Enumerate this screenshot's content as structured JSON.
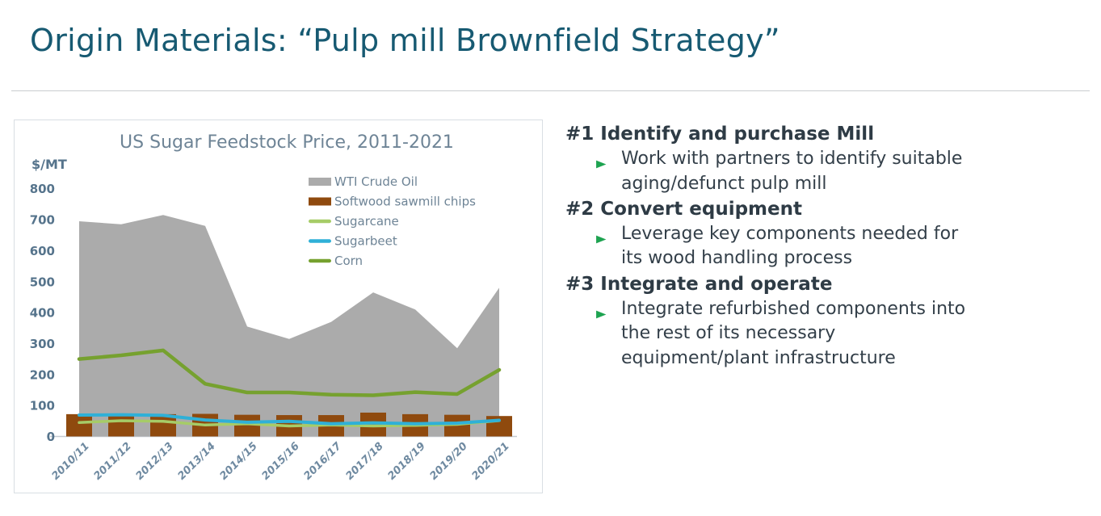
{
  "slide": {
    "title": "Origin Materials: “Pulp mill Brownfield Strategy”"
  },
  "chart_data": {
    "type": "combo",
    "subtypes": [
      "area",
      "bar",
      "line"
    ],
    "title": "US Sugar Feedstock Price, 2011-2021",
    "ylabel": "$/MT",
    "xlabel": "",
    "ylim": [
      0,
      800
    ],
    "y_ticks": [
      800,
      700,
      600,
      500,
      400,
      300,
      200,
      100,
      0
    ],
    "grid": false,
    "legend_position": "inside-top-right",
    "categories": [
      "2010/11",
      "2011/12",
      "2012/13",
      "2013/14",
      "2014/15",
      "2015/16",
      "2016/17",
      "2017/18",
      "2018/19",
      "2019/20",
      "2020/21"
    ],
    "series": [
      {
        "name": "WTI Crude Oil",
        "type": "area",
        "color": "#ABABAB",
        "values": [
          695,
          685,
          715,
          680,
          355,
          315,
          370,
          465,
          410,
          285,
          480
        ]
      },
      {
        "name": "Softwood sawmill chips",
        "type": "bar",
        "color": "#8F4A0E",
        "values": [
          72,
          72,
          72,
          73,
          70,
          69,
          69,
          77,
          72,
          70,
          66
        ]
      },
      {
        "name": "Sugarcane",
        "type": "line",
        "color": "#A6CC67",
        "values": [
          45,
          51,
          49,
          37,
          41,
          34,
          37,
          34,
          36,
          39,
          51
        ]
      },
      {
        "name": "Sugarbeet",
        "type": "line",
        "color": "#2FB0D7",
        "values": [
          69,
          70,
          68,
          53,
          46,
          49,
          41,
          44,
          41,
          43,
          52
        ]
      },
      {
        "name": "Corn",
        "type": "line",
        "color": "#76A12F",
        "values": [
          250,
          262,
          278,
          170,
          142,
          142,
          135,
          133,
          143,
          137,
          215
        ]
      }
    ]
  },
  "strategy": {
    "bullet_glyph": "➢",
    "bullet_color": "#1EA351",
    "items": [
      {
        "heading": "#1 Identify and purchase Mill",
        "bullets": [
          [
            "Work with partners to identify suitable",
            "aging/defunct pulp mill"
          ]
        ]
      },
      {
        "heading": "#2 Convert equipment",
        "bullets": [
          [
            "Leverage key components needed for",
            "its wood handling process"
          ]
        ]
      },
      {
        "heading": "#3 Integrate and operate",
        "bullets": [
          [
            "Integrate refurbished components into",
            "the rest of its necessary",
            "equipment/plant infrastructure"
          ]
        ]
      }
    ]
  },
  "colors": {
    "slide_title": "#175A72",
    "heading_text": "#2E3B45",
    "body_text": "#333F49",
    "bullet_arrow": "#1EA351",
    "chart_text": "#6E8496",
    "axis_tick_text": "#56748C",
    "x_label_text": "#6E89A0",
    "panel_border": "#D9DEE3",
    "divider": "#C9CCCF",
    "axis_line": "#C5CBD1"
  }
}
